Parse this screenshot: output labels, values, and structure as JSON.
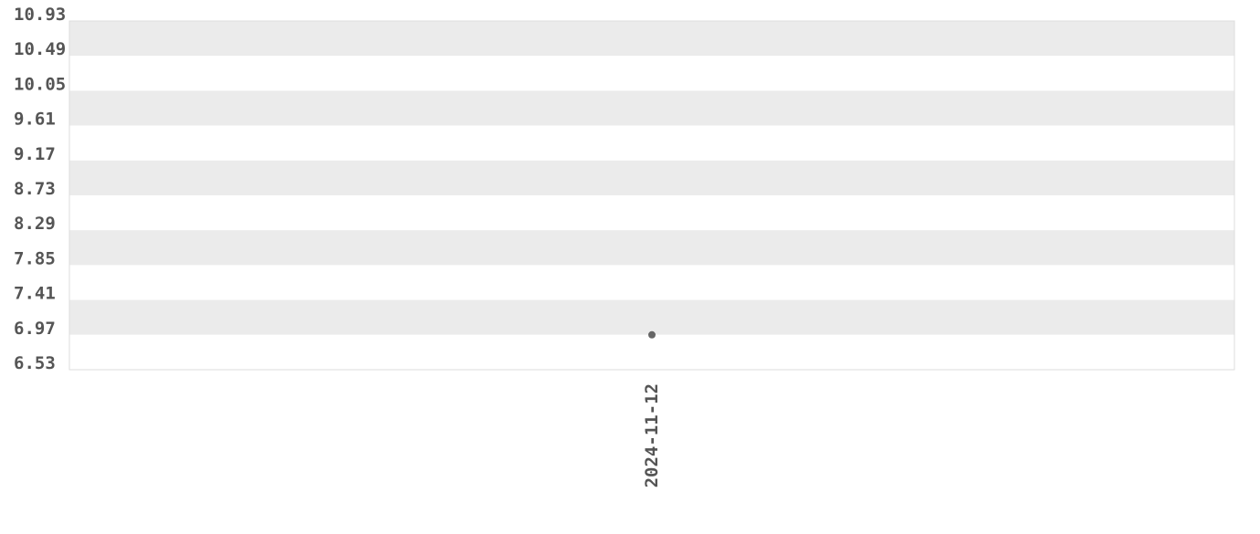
{
  "chart_data": {
    "type": "scatter",
    "title": "",
    "xlabel": "",
    "ylabel": "",
    "x_categories": [
      "2024-11-12"
    ],
    "points": [
      {
        "x": "2024-11-12",
        "y": 6.97
      }
    ],
    "ylim": [
      6.53,
      10.93
    ],
    "y_ticks": [
      "6.53",
      "6.97",
      "7.41",
      "7.85",
      "8.29",
      "8.73",
      "9.17",
      "9.61",
      "10.05",
      "10.49",
      "10.93"
    ],
    "grid": "alternating horizontal bands",
    "legend": "none",
    "colors": {
      "band": "#ebebeb",
      "point": "#666666",
      "text": "#555555",
      "border": "#dddddd"
    }
  }
}
